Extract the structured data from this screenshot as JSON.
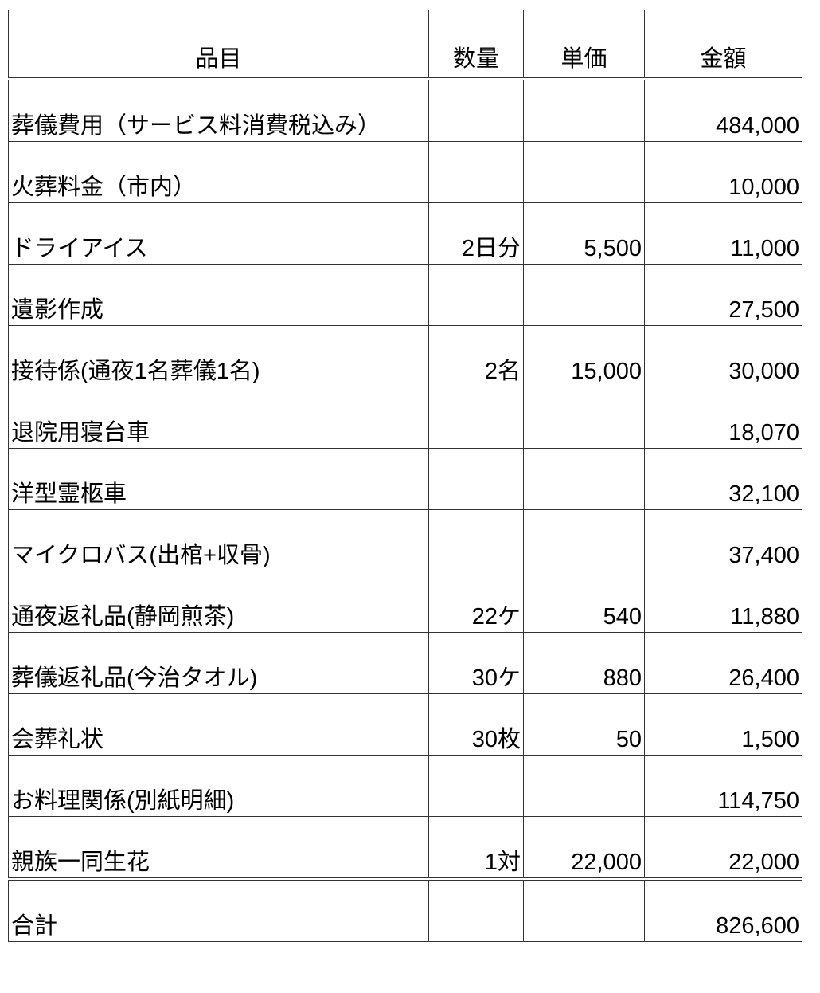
{
  "headers": {
    "item": "品目",
    "quantity": "数量",
    "unit_price": "単価",
    "amount": "金額"
  },
  "rows": [
    {
      "item": "葬儀費用（サービス料消費税込み）",
      "quantity": "",
      "unit_price": "",
      "amount": "484,000"
    },
    {
      "item": "火葬料金（市内）",
      "quantity": "",
      "unit_price": "",
      "amount": "10,000"
    },
    {
      "item": "ドライアイス",
      "quantity": "2日分",
      "unit_price": "5,500",
      "amount": "11,000"
    },
    {
      "item": "遺影作成",
      "quantity": "",
      "unit_price": "",
      "amount": "27,500"
    },
    {
      "item": "接待係(通夜1名葬儀1名)",
      "quantity": "2名",
      "unit_price": "15,000",
      "amount": "30,000"
    },
    {
      "item": "退院用寝台車",
      "quantity": "",
      "unit_price": "",
      "amount": "18,070"
    },
    {
      "item": "洋型霊柩車",
      "quantity": "",
      "unit_price": "",
      "amount": "32,100"
    },
    {
      "item": "マイクロバス(出棺+収骨)",
      "quantity": "",
      "unit_price": "",
      "amount": "37,400"
    },
    {
      "item": "通夜返礼品(静岡煎茶)",
      "quantity": "22ケ",
      "unit_price": "540",
      "amount": "11,880"
    },
    {
      "item": "葬儀返礼品(今治タオル)",
      "quantity": "30ケ",
      "unit_price": "880",
      "amount": "26,400"
    },
    {
      "item": "会葬礼状",
      "quantity": "30枚",
      "unit_price": "50",
      "amount": "1,500"
    },
    {
      "item": "お料理関係(別紙明細)",
      "quantity": "",
      "unit_price": "",
      "amount": "114,750"
    },
    {
      "item": "親族一同生花",
      "quantity": "1対",
      "unit_price": "22,000",
      "amount": "22,000"
    }
  ],
  "total": {
    "label": "合計",
    "amount": "826,600"
  }
}
